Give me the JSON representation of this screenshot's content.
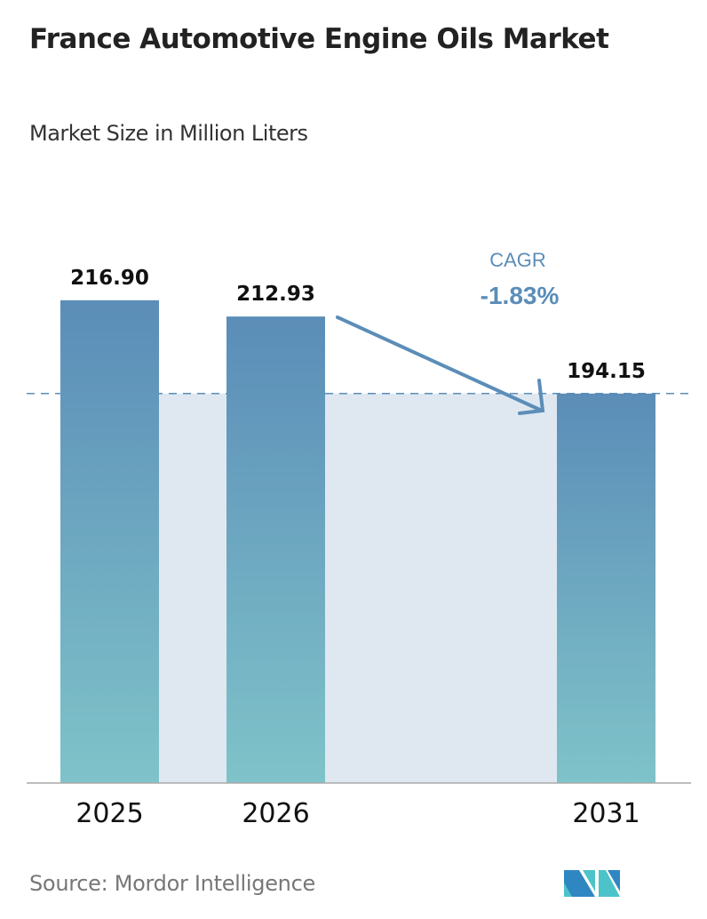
{
  "chart_data": {
    "type": "bar",
    "title": "France Automotive Engine Oils Market",
    "subtitle": "Market Size in Million Liters",
    "categories": [
      "2025",
      "2026",
      "2031"
    ],
    "values": [
      216.9,
      212.93,
      194.15
    ],
    "value_labels": [
      "216.90",
      "212.93",
      "194.15"
    ],
    "annotation": {
      "label": "CAGR",
      "value": "-1.83%"
    },
    "grid": false,
    "colors": {
      "bar_top": "#5b8db8",
      "bar_bottom": "#7fc3c9",
      "shade": "#dfe8f1",
      "annotation": "#5b8db8"
    }
  },
  "source": "Source:  Mordor Intelligence"
}
